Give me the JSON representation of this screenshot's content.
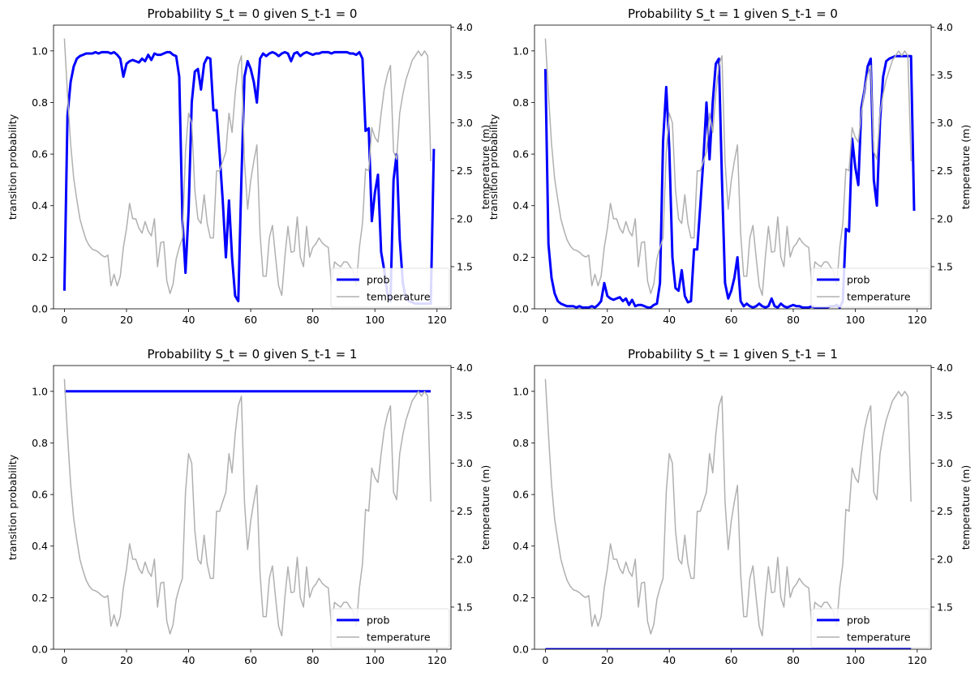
{
  "temperature": [
    3.88,
    3.3,
    2.78,
    2.42,
    2.2,
    2.0,
    1.88,
    1.78,
    1.72,
    1.68,
    1.67,
    1.65,
    1.62,
    1.6,
    1.62,
    1.3,
    1.42,
    1.3,
    1.4,
    1.7,
    1.9,
    2.16,
    2.0,
    2.0,
    1.9,
    1.85,
    1.97,
    1.87,
    1.82,
    2.0,
    1.5,
    1.75,
    1.76,
    1.35,
    1.22,
    1.32,
    1.58,
    1.7,
    1.8,
    2.7,
    3.1,
    3.0,
    2.3,
    2.0,
    1.95,
    2.25,
    1.95,
    1.8,
    1.8,
    2.5,
    2.5,
    2.6,
    2.7,
    3.1,
    2.9,
    3.3,
    3.6,
    3.7,
    2.6,
    2.1,
    2.4,
    2.6,
    2.77,
    1.85,
    1.4,
    1.4,
    1.8,
    1.93,
    1.6,
    1.3,
    1.2,
    1.6,
    1.92,
    1.65,
    1.66,
    2.02,
    1.6,
    1.5,
    1.92,
    1.6,
    1.7,
    1.74,
    1.8,
    1.75,
    1.72,
    1.7,
    1.3,
    1.55,
    1.52,
    1.5,
    1.55,
    1.55,
    1.5,
    1.45,
    1.3,
    1.7,
    1.95,
    2.52,
    2.5,
    2.95,
    2.85,
    2.8,
    3.1,
    3.35,
    3.5,
    3.6,
    2.7,
    2.62,
    3.1,
    3.3,
    3.45,
    3.55,
    3.65,
    3.7,
    3.75,
    3.7,
    3.75,
    3.7,
    2.6
  ],
  "subplots": [
    {
      "title": "Probability S_t = 0 given S_t-1 = 0",
      "prob": [
        0.07,
        0.75,
        0.88,
        0.94,
        0.97,
        0.98,
        0.985,
        0.99,
        0.99,
        0.99,
        0.995,
        0.99,
        0.995,
        0.995,
        0.995,
        0.99,
        0.995,
        0.985,
        0.97,
        0.9,
        0.95,
        0.96,
        0.965,
        0.96,
        0.955,
        0.97,
        0.96,
        0.985,
        0.965,
        0.99,
        0.985,
        0.985,
        0.99,
        0.995,
        0.995,
        0.985,
        0.98,
        0.9,
        0.35,
        0.14,
        0.38,
        0.8,
        0.92,
        0.93,
        0.85,
        0.95,
        0.975,
        0.97,
        0.77,
        0.77,
        0.6,
        0.42,
        0.2,
        0.42,
        0.2,
        0.05,
        0.03,
        0.5,
        0.9,
        0.96,
        0.93,
        0.88,
        0.8,
        0.97,
        0.99,
        0.98,
        0.99,
        0.995,
        0.99,
        0.98,
        0.99,
        0.995,
        0.99,
        0.96,
        0.99,
        0.995,
        0.98,
        0.99,
        0.995,
        0.99,
        0.985,
        0.99,
        0.99,
        0.995,
        0.995,
        0.995,
        0.99,
        0.995,
        0.995,
        0.995,
        0.995,
        0.995,
        0.99,
        0.99,
        0.985,
        0.995,
        0.97,
        0.69,
        0.7,
        0.34,
        0.45,
        0.52,
        0.22,
        0.15,
        0.06,
        0.03,
        0.5,
        0.6,
        0.27,
        0.1,
        0.04,
        0.03,
        0.025,
        0.02,
        0.02,
        0.02,
        0.02,
        0.02,
        0.02,
        0.62
      ]
    },
    {
      "title": "Probability S_t = 1 given S_t-1 = 0",
      "prob": [
        0.93,
        0.25,
        0.12,
        0.06,
        0.03,
        0.02,
        0.015,
        0.01,
        0.01,
        0.01,
        0.005,
        0.01,
        0.005,
        0.005,
        0.005,
        0.01,
        0.005,
        0.015,
        0.03,
        0.1,
        0.05,
        0.04,
        0.035,
        0.04,
        0.045,
        0.03,
        0.04,
        0.015,
        0.035,
        0.01,
        0.015,
        0.015,
        0.01,
        0.005,
        0.005,
        0.015,
        0.02,
        0.1,
        0.65,
        0.86,
        0.62,
        0.2,
        0.08,
        0.07,
        0.15,
        0.05,
        0.025,
        0.03,
        0.23,
        0.23,
        0.4,
        0.58,
        0.8,
        0.58,
        0.8,
        0.95,
        0.97,
        0.5,
        0.1,
        0.04,
        0.07,
        0.12,
        0.2,
        0.03,
        0.01,
        0.02,
        0.01,
        0.005,
        0.01,
        0.02,
        0.01,
        0.005,
        0.01,
        0.04,
        0.01,
        0.005,
        0.02,
        0.01,
        0.005,
        0.01,
        0.015,
        0.01,
        0.01,
        0.005,
        0.005,
        0.005,
        0.01,
        0.005,
        0.005,
        0.005,
        0.005,
        0.005,
        0.01,
        0.01,
        0.015,
        0.005,
        0.03,
        0.31,
        0.3,
        0.66,
        0.55,
        0.48,
        0.78,
        0.85,
        0.94,
        0.97,
        0.5,
        0.4,
        0.73,
        0.9,
        0.96,
        0.97,
        0.975,
        0.98,
        0.98,
        0.98,
        0.98,
        0.98,
        0.98,
        0.38
      ]
    },
    {
      "title": "Probability S_t = 0 given S_t-1 = 1",
      "prob_const": 1.0
    },
    {
      "title": "Probability S_t = 1 given S_t-1 = 1",
      "prob_const": 0.0
    }
  ],
  "chart_data": [
    {
      "type": "line",
      "title": "Probability S_t = 0 given S_t-1 = 0",
      "ylabel": "transition probability",
      "y2label": "temperature (m)",
      "xlim": [
        -3.5,
        124.5
      ],
      "ylim": [
        0,
        1.1
      ],
      "y2lim": [
        1.06,
        4.02
      ],
      "xticks": [
        0,
        20,
        40,
        60,
        80,
        100,
        120
      ],
      "yticks": [
        "0.0",
        "0.2",
        "0.4",
        "0.6",
        "0.8",
        "1.0"
      ],
      "y2ticks": [
        "1.5",
        "2.0",
        "2.5",
        "3.0",
        "3.5",
        "4.0"
      ],
      "series": [
        {
          "name": "prob",
          "color": "#0000ff",
          "source": "subplots.0.prob"
        },
        {
          "name": "temperature",
          "color": "#b0b0b0",
          "source": "temperature"
        }
      ],
      "legend": "lower-right"
    },
    {
      "type": "line",
      "title": "Probability S_t = 1 given S_t-1 = 0",
      "ylabel": "transition probability",
      "y2label": "temperature (m)",
      "xlim": [
        -3.5,
        124.5
      ],
      "ylim": [
        0,
        1.1
      ],
      "y2lim": [
        1.06,
        4.02
      ],
      "xticks": [
        0,
        20,
        40,
        60,
        80,
        100,
        120
      ],
      "yticks": [
        "0.0",
        "0.2",
        "0.4",
        "0.6",
        "0.8",
        "1.0"
      ],
      "y2ticks": [
        "1.5",
        "2.0",
        "2.5",
        "3.0",
        "3.5",
        "4.0"
      ],
      "series": [
        {
          "name": "prob",
          "color": "#0000ff",
          "source": "subplots.1.prob"
        },
        {
          "name": "temperature",
          "color": "#b0b0b0",
          "source": "temperature"
        }
      ],
      "legend": "lower-right"
    },
    {
      "type": "line",
      "title": "Probability S_t = 0 given S_t-1 = 1",
      "ylabel": "transition probability",
      "y2label": "temperature (m)",
      "xlim": [
        -3.5,
        124.5
      ],
      "ylim": [
        0,
        1.1
      ],
      "y2lim": [
        1.06,
        4.02
      ],
      "xticks": [
        0,
        20,
        40,
        60,
        80,
        100,
        120
      ],
      "yticks": [
        "0.0",
        "0.2",
        "0.4",
        "0.6",
        "0.8",
        "1.0"
      ],
      "y2ticks": [
        "1.5",
        "2.0",
        "2.5",
        "3.0",
        "3.5",
        "4.0"
      ],
      "series": [
        {
          "name": "prob",
          "color": "#0000ff",
          "constant": 1.0
        },
        {
          "name": "temperature",
          "color": "#b0b0b0",
          "source": "temperature"
        }
      ],
      "legend": "lower-right"
    },
    {
      "type": "line",
      "title": "Probability S_t = 1 given S_t-1 = 1",
      "ylabel": "",
      "y2label": "temperature (m)",
      "xlim": [
        -3.5,
        124.5
      ],
      "ylim": [
        0,
        1.1
      ],
      "y2lim": [
        1.06,
        4.02
      ],
      "xticks": [
        0,
        20,
        40,
        60,
        80,
        100,
        120
      ],
      "yticks": [
        "0.0",
        "0.2",
        "0.4",
        "0.6",
        "0.8",
        "1.0"
      ],
      "y2ticks": [
        "1.5",
        "2.0",
        "2.5",
        "3.0",
        "3.5",
        "4.0"
      ],
      "series": [
        {
          "name": "prob",
          "color": "#0000ff",
          "constant": 0.0
        },
        {
          "name": "temperature",
          "color": "#b0b0b0",
          "source": "temperature"
        }
      ],
      "legend": "lower-right"
    }
  ]
}
